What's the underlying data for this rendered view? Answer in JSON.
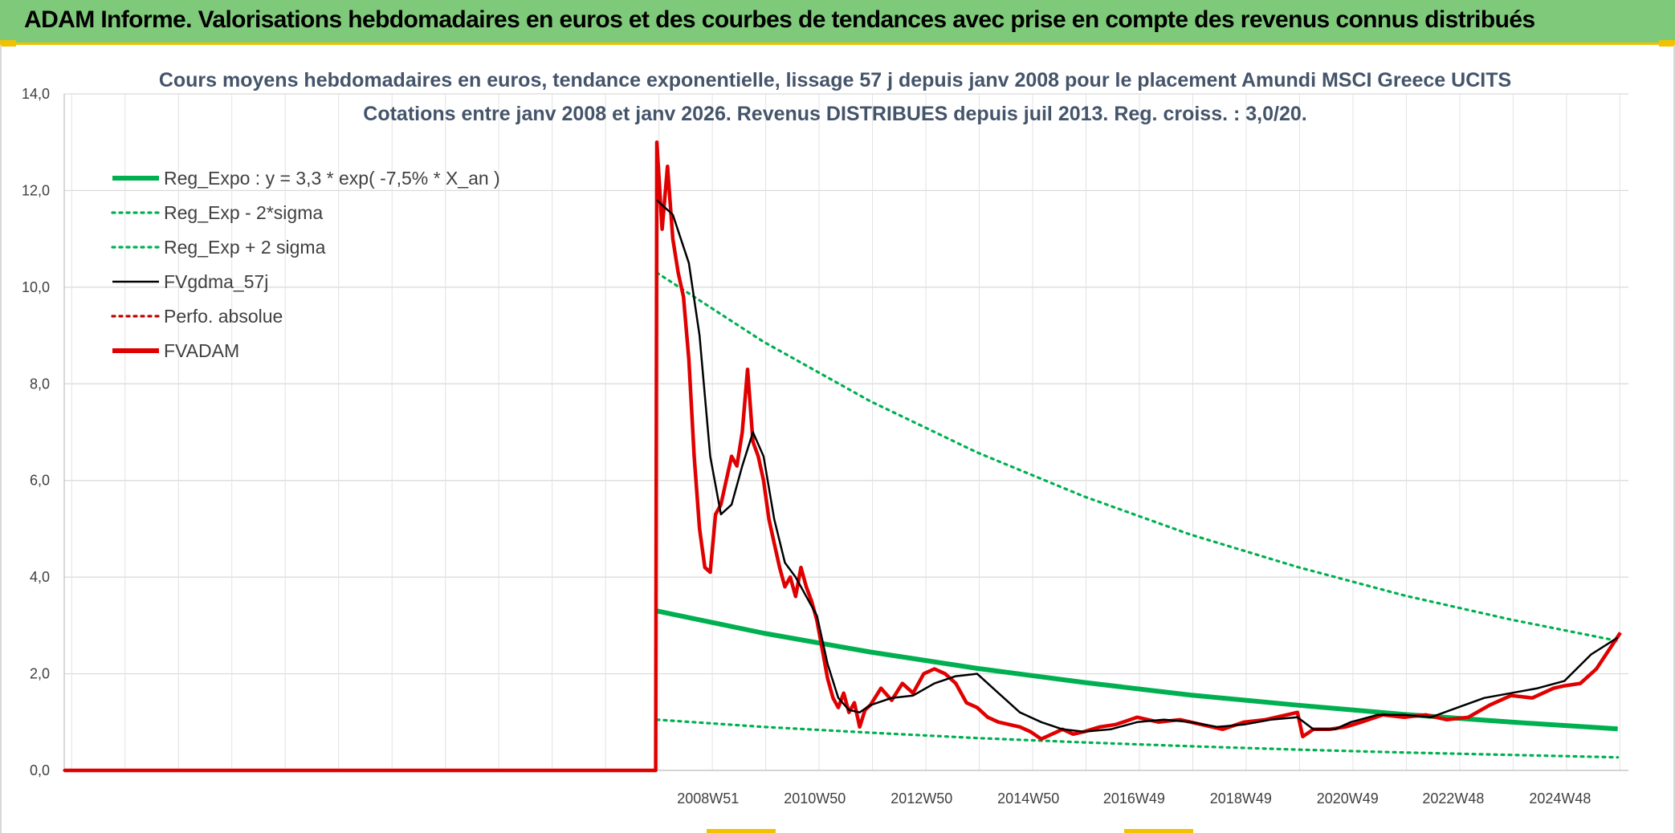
{
  "banner": {
    "title": "ADAM Informe. Valorisations hebdomadaires en euros et des courbes de tendances avec prise en compte des revenus connus distribués"
  },
  "chart_data": {
    "type": "line",
    "title_line1": "Cours moyens hebdomadaires en euros, tendance exponentielle, lissage 57 j depuis janv 2008 pour le placement Amundi MSCI Greece UCITS",
    "title_line2": "Cotations entre janv 2008 et janv 2026. Revenus DISTRIBUES depuis juil 2013. Reg. croiss. : 3,0/20.",
    "ylim": [
      0,
      14
    ],
    "yticks": [
      "0,0",
      "2,0",
      "4,0",
      "6,0",
      "8,0",
      "10,0",
      "12,0",
      "14,0"
    ],
    "xlim": [
      1996.9,
      2026.2
    ],
    "xticks": [
      {
        "label": "2008W51",
        "x": 2008.96
      },
      {
        "label": "2010W50",
        "x": 2010.96
      },
      {
        "label": "2012W50",
        "x": 2012.96
      },
      {
        "label": "2014W50",
        "x": 2014.96
      },
      {
        "label": "2016W49",
        "x": 2016.94
      },
      {
        "label": "2018W49",
        "x": 2018.94
      },
      {
        "label": "2020W49",
        "x": 2020.94
      },
      {
        "label": "2022W48",
        "x": 2022.92
      },
      {
        "label": "2024W48",
        "x": 2024.92
      }
    ],
    "grid": true,
    "legend_position": "top-left",
    "series": [
      {
        "name": "Reg_Expo : y = 3,3 * exp( -7,5% *  X_an )",
        "color": "#00b050",
        "style": "solid-thick",
        "x": [
          2008.0,
          2010.0,
          2012.0,
          2014.0,
          2016.0,
          2018.0,
          2020.0,
          2022.0,
          2024.0,
          2026.0
        ],
        "y": [
          3.3,
          2.84,
          2.45,
          2.11,
          1.82,
          1.56,
          1.35,
          1.16,
          1.0,
          0.86
        ]
      },
      {
        "name": "Reg_Exp - 2*sigma",
        "color": "#00b050",
        "style": "dotted",
        "x": [
          2008.0,
          2010.0,
          2012.0,
          2014.0,
          2016.0,
          2018.0,
          2020.0,
          2022.0,
          2024.0,
          2026.0
        ],
        "y": [
          1.05,
          0.9,
          0.78,
          0.67,
          0.58,
          0.5,
          0.43,
          0.37,
          0.32,
          0.27
        ]
      },
      {
        "name": "Reg_Exp + 2 sigma",
        "color": "#00b050",
        "style": "dotted",
        "x": [
          2008.0,
          2010.0,
          2012.0,
          2014.0,
          2016.0,
          2018.0,
          2020.0,
          2022.0,
          2024.0,
          2026.0
        ],
        "y": [
          10.3,
          8.87,
          7.64,
          6.58,
          5.67,
          4.88,
          4.21,
          3.62,
          3.12,
          2.68
        ]
      },
      {
        "name": "FVgdma_57j",
        "color": "#000000",
        "style": "solid",
        "x": [
          2008.0,
          2008.3,
          2008.6,
          2008.8,
          2009.0,
          2009.2,
          2009.4,
          2009.6,
          2009.8,
          2010.0,
          2010.2,
          2010.4,
          2010.6,
          2010.8,
          2011.0,
          2011.2,
          2011.4,
          2011.6,
          2011.8,
          2012.0,
          2012.4,
          2012.8,
          2013.2,
          2013.6,
          2014.0,
          2014.4,
          2014.8,
          2015.2,
          2015.6,
          2016.0,
          2016.5,
          2017.0,
          2017.5,
          2018.0,
          2018.5,
          2019.0,
          2019.5,
          2020.0,
          2020.3,
          2020.7,
          2021.0,
          2021.5,
          2022.0,
          2022.5,
          2023.0,
          2023.5,
          2024.0,
          2024.5,
          2025.0,
          2025.5,
          2026.0
        ],
        "y": [
          11.8,
          11.5,
          10.5,
          9.0,
          6.5,
          5.3,
          5.5,
          6.3,
          7.0,
          6.5,
          5.2,
          4.3,
          4.0,
          3.6,
          3.2,
          2.2,
          1.5,
          1.25,
          1.2,
          1.35,
          1.5,
          1.55,
          1.8,
          1.95,
          2.0,
          1.6,
          1.2,
          1.0,
          0.85,
          0.8,
          0.85,
          1.0,
          1.05,
          1.0,
          0.9,
          0.95,
          1.05,
          1.1,
          0.85,
          0.85,
          1.0,
          1.15,
          1.15,
          1.1,
          1.3,
          1.5,
          1.6,
          1.7,
          1.85,
          2.4,
          2.75
        ]
      },
      {
        "name": "Perfo. absolue",
        "color": "#c00000",
        "style": "dotted",
        "x": [
          1996.9,
          2008.0
        ],
        "y": [
          0.0,
          0.0
        ]
      },
      {
        "name": "FVADAM",
        "color": "#e00000",
        "style": "solid-thick",
        "x": [
          1996.9,
          2007.98,
          2008.0,
          2008.1,
          2008.2,
          2008.3,
          2008.4,
          2008.5,
          2008.6,
          2008.7,
          2008.8,
          2008.9,
          2009.0,
          2009.1,
          2009.2,
          2009.3,
          2009.4,
          2009.5,
          2009.6,
          2009.7,
          2009.8,
          2009.9,
          2010.0,
          2010.1,
          2010.2,
          2010.3,
          2010.4,
          2010.5,
          2010.6,
          2010.7,
          2010.8,
          2010.9,
          2011.0,
          2011.1,
          2011.2,
          2011.3,
          2011.4,
          2011.5,
          2011.6,
          2011.7,
          2011.8,
          2011.9,
          2012.0,
          2012.2,
          2012.4,
          2012.6,
          2012.8,
          2013.0,
          2013.2,
          2013.4,
          2013.6,
          2013.8,
          2014.0,
          2014.2,
          2014.4,
          2014.6,
          2014.8,
          2015.0,
          2015.2,
          2015.4,
          2015.6,
          2015.8,
          2016.0,
          2016.3,
          2016.6,
          2017.0,
          2017.4,
          2017.8,
          2018.2,
          2018.6,
          2019.0,
          2019.4,
          2019.8,
          2020.0,
          2020.1,
          2020.3,
          2020.6,
          2020.9,
          2021.2,
          2021.6,
          2022.0,
          2022.4,
          2022.8,
          2023.2,
          2023.6,
          2024.0,
          2024.4,
          2024.8,
          2025.0,
          2025.3,
          2025.6,
          2025.9,
          2026.05
        ],
        "y": [
          0.0,
          0.0,
          13.0,
          11.2,
          12.5,
          11.0,
          10.3,
          9.8,
          8.5,
          6.5,
          5.0,
          4.2,
          4.1,
          5.3,
          5.5,
          6.0,
          6.5,
          6.3,
          7.0,
          8.3,
          6.8,
          6.5,
          6.0,
          5.2,
          4.7,
          4.2,
          3.8,
          4.0,
          3.6,
          4.2,
          3.8,
          3.5,
          3.1,
          2.5,
          1.9,
          1.5,
          1.3,
          1.6,
          1.2,
          1.4,
          0.9,
          1.25,
          1.35,
          1.7,
          1.45,
          1.8,
          1.6,
          2.0,
          2.1,
          2.0,
          1.8,
          1.4,
          1.3,
          1.1,
          1.0,
          0.95,
          0.9,
          0.8,
          0.65,
          0.75,
          0.85,
          0.75,
          0.8,
          0.9,
          0.95,
          1.1,
          1.0,
          1.05,
          0.95,
          0.85,
          1.0,
          1.05,
          1.15,
          1.2,
          0.7,
          0.85,
          0.85,
          0.9,
          1.0,
          1.15,
          1.1,
          1.15,
          1.05,
          1.1,
          1.35,
          1.55,
          1.5,
          1.7,
          1.75,
          1.8,
          2.1,
          2.6,
          2.85
        ]
      }
    ]
  }
}
